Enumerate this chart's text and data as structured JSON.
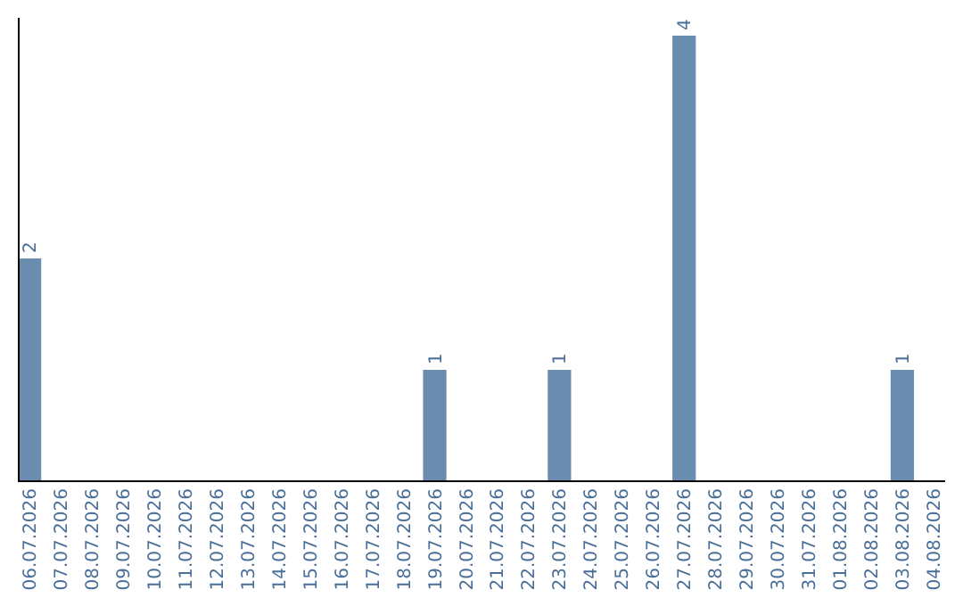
{
  "chart_data": {
    "type": "bar",
    "categories": [
      "06.07.2026",
      "07.07.2026",
      "08.07.2026",
      "09.07.2026",
      "10.07.2026",
      "11.07.2026",
      "12.07.2026",
      "13.07.2026",
      "14.07.2026",
      "15.07.2026",
      "16.07.2026",
      "17.07.2026",
      "18.07.2026",
      "19.07.2026",
      "20.07.2026",
      "21.07.2026",
      "22.07.2026",
      "23.07.2026",
      "24.07.2026",
      "25.07.2026",
      "26.07.2026",
      "27.07.2026",
      "28.07.2026",
      "29.07.2026",
      "30.07.2026",
      "31.07.2026",
      "01.08.2026",
      "02.08.2026",
      "03.08.2026",
      "04.08.2026"
    ],
    "values": [
      2,
      0,
      0,
      0,
      0,
      0,
      0,
      0,
      0,
      0,
      0,
      0,
      0,
      1,
      0,
      0,
      0,
      1,
      0,
      0,
      0,
      4,
      0,
      0,
      0,
      0,
      0,
      0,
      1,
      0
    ],
    "value_labels": [
      "2",
      null,
      null,
      null,
      null,
      null,
      null,
      null,
      null,
      null,
      null,
      null,
      null,
      "1",
      null,
      null,
      null,
      "1",
      null,
      null,
      null,
      "4",
      null,
      null,
      null,
      null,
      null,
      null,
      "1",
      null
    ],
    "color": "#6a8caf"
  }
}
